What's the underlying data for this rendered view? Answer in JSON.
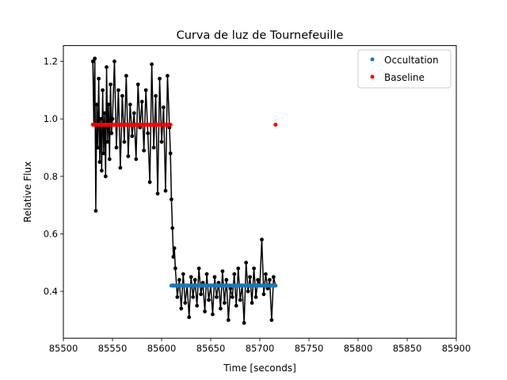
{
  "chart_data": {
    "type": "scatter",
    "title": "Curva de luz de Tournefeuille",
    "xlabel": "Time [seconds]",
    "ylabel": "Relative Flux",
    "xlim": [
      85500,
      85900
    ],
    "ylim": [
      0.237,
      1.255
    ],
    "x_ticks": [
      85500,
      85550,
      85600,
      85650,
      85700,
      85750,
      85800,
      85850,
      85900
    ],
    "x_tick_labels": [
      "85500",
      "85550",
      "85600",
      "85650",
      "85700",
      "85750",
      "85800",
      "85850",
      "85900"
    ],
    "y_ticks": [
      0.4,
      0.6,
      0.8,
      1.0,
      1.2
    ],
    "y_tick_labels": [
      "0.4",
      "0.6",
      "0.8",
      "1.0",
      "1.2"
    ],
    "grid": false,
    "legend_position": "top-right",
    "series": [
      {
        "role": "lightcurve",
        "color": "#000000",
        "line": true,
        "x": [
          85530,
          85531,
          85532,
          85533,
          85534,
          85535,
          85536,
          85537,
          85538,
          85539,
          85540,
          85541,
          85542,
          85543,
          85544,
          85545,
          85546,
          85547,
          85548,
          85549,
          85550,
          85552,
          85554,
          85556,
          85558,
          85560,
          85562,
          85564,
          85566,
          85568,
          85570,
          85572,
          85574,
          85576,
          85578,
          85580,
          85582,
          85584,
          85586,
          85588,
          85590,
          85592,
          85594,
          85596,
          85598,
          85600,
          85602,
          85604,
          85606,
          85608,
          85609,
          85610,
          85611,
          85612,
          85613,
          85614,
          85616,
          85618,
          85620,
          85622,
          85624,
          85626,
          85628,
          85630,
          85632,
          85634,
          85636,
          85638,
          85640,
          85642,
          85644,
          85646,
          85648,
          85650,
          85652,
          85654,
          85656,
          85658,
          85660,
          85662,
          85664,
          85666,
          85668,
          85670,
          85672,
          85674,
          85676,
          85678,
          85680,
          85682,
          85684,
          85686,
          85688,
          85690,
          85692,
          85694,
          85696,
          85698,
          85700,
          85702,
          85704,
          85706,
          85708,
          85710,
          85712,
          85714,
          85716
        ],
        "y": [
          1.2,
          0.98,
          1.21,
          0.68,
          1.05,
          0.9,
          1.14,
          0.85,
          1.0,
          0.82,
          1.1,
          0.88,
          1.02,
          0.8,
          1.18,
          0.92,
          1.05,
          0.86,
          1.12,
          0.95,
          1.0,
          1.2,
          0.9,
          1.1,
          0.83,
          1.08,
          0.92,
          1.15,
          0.87,
          1.05,
          0.94,
          1.02,
          0.86,
          1.12,
          0.97,
          1.06,
          0.89,
          1.1,
          0.95,
          0.78,
          1.19,
          0.9,
          1.08,
          0.74,
          1.14,
          0.92,
          1.04,
          0.75,
          1.15,
          0.97,
          0.88,
          0.72,
          0.62,
          0.52,
          0.55,
          0.48,
          0.38,
          0.44,
          0.34,
          0.46,
          0.36,
          0.42,
          0.31,
          0.45,
          0.38,
          0.44,
          0.35,
          0.48,
          0.39,
          0.43,
          0.33,
          0.46,
          0.37,
          0.42,
          0.32,
          0.45,
          0.38,
          0.43,
          0.34,
          0.47,
          0.36,
          0.44,
          0.3,
          0.41,
          0.38,
          0.46,
          0.35,
          0.48,
          0.37,
          0.42,
          0.29,
          0.5,
          0.4,
          0.45,
          0.36,
          0.48,
          0.38,
          0.44,
          0.42,
          0.58,
          0.39,
          0.46,
          0.41,
          0.44,
          0.3,
          0.45,
          0.42
        ]
      },
      {
        "name": "Occultation",
        "color": "#1f77b4",
        "x_start": 85610,
        "x_end": 85716,
        "count": 120,
        "y": 0.42
      },
      {
        "name": "Baseline",
        "color": "#ff0000",
        "x_start": 85530,
        "x_end": 85609,
        "count": 110,
        "y": 0.98,
        "outlier": {
          "x": 85716,
          "y": 0.98
        }
      }
    ]
  }
}
